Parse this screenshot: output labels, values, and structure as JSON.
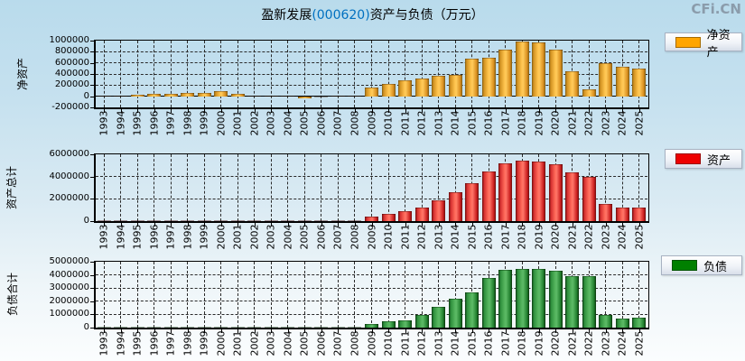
{
  "title": {
    "company": "盈新发展",
    "code": "(000620)",
    "suffix": "资产与负债（万元）"
  },
  "logo": "CFi.CN",
  "colors": {
    "background_top": "#b9dbec",
    "background_bottom": "#fbfdfe",
    "title_code": "#0070c0",
    "logo": "#8b9cab",
    "net_assets": "#FFA500",
    "assets": "#EE0000",
    "liabilities": "#008000",
    "gridline": "#2a2a2a"
  },
  "chart_data": [
    {
      "type": "bar",
      "ylabel": "净资产",
      "legend": "净资产",
      "series_key": "net-assets",
      "color": "#FFA500",
      "grid": true,
      "legend_position": "right",
      "ylim": [
        -200000,
        1000000
      ],
      "yticks": [
        1000000,
        800000,
        600000,
        400000,
        200000,
        0,
        -200000
      ],
      "categories": [
        "1993",
        "1994",
        "1995",
        "1996",
        "1997",
        "1998",
        "1999",
        "2000",
        "2001",
        "2002",
        "2003",
        "2004",
        "2005",
        "2006",
        "2007",
        "2008",
        "2009",
        "2010",
        "2011",
        "2012",
        "2013",
        "2014",
        "2015",
        "2016",
        "2017",
        "2018",
        "2019",
        "2020",
        "2021",
        "2022",
        "2023",
        "2024",
        "2025"
      ],
      "values": [
        15000,
        15000,
        35000,
        45000,
        45000,
        60000,
        65000,
        85000,
        40000,
        15000,
        15000,
        10000,
        -40000,
        -10000,
        10000,
        15000,
        160000,
        215000,
        290000,
        315000,
        365000,
        380000,
        670000,
        700000,
        840000,
        985000,
        975000,
        840000,
        445000,
        120000,
        600000,
        535000,
        500000
      ]
    },
    {
      "type": "bar",
      "ylabel": "资产总计",
      "legend": "资产",
      "series_key": "total-assets",
      "color": "#EE0000",
      "grid": true,
      "legend_position": "right",
      "ylim": [
        0,
        6000000
      ],
      "yticks": [
        6000000,
        4000000,
        2000000,
        0
      ],
      "categories": [
        "1993",
        "1994",
        "1995",
        "1996",
        "1997",
        "1998",
        "1999",
        "2000",
        "2001",
        "2002",
        "2003",
        "2004",
        "2005",
        "2006",
        "2007",
        "2008",
        "2009",
        "2010",
        "2011",
        "2012",
        "2013",
        "2014",
        "2015",
        "2016",
        "2017",
        "2018",
        "2019",
        "2020",
        "2021",
        "2022",
        "2023",
        "2024",
        "2025"
      ],
      "values": [
        30000,
        35000,
        60000,
        70000,
        75000,
        90000,
        95000,
        110000,
        90000,
        80000,
        75000,
        70000,
        60000,
        50000,
        60000,
        70000,
        400000,
        650000,
        860000,
        1200000,
        1900000,
        2560000,
        3380000,
        4490000,
        5200000,
        5410000,
        5350000,
        5120000,
        4350000,
        4000000,
        1550000,
        1240000,
        1220000
      ]
    },
    {
      "type": "bar",
      "ylabel": "负债合计",
      "legend": "负债",
      "series_key": "total-liabilities",
      "color": "#008000",
      "grid": true,
      "legend_position": "right",
      "ylim": [
        0,
        5000000
      ],
      "yticks": [
        5000000,
        4000000,
        3000000,
        2000000,
        1000000,
        0
      ],
      "categories": [
        "1993",
        "1994",
        "1995",
        "1996",
        "1997",
        "1998",
        "1999",
        "2000",
        "2001",
        "2002",
        "2003",
        "2004",
        "2005",
        "2006",
        "2007",
        "2008",
        "2009",
        "2010",
        "2011",
        "2012",
        "2013",
        "2014",
        "2015",
        "2016",
        "2017",
        "2018",
        "2019",
        "2020",
        "2021",
        "2022",
        "2023",
        "2024",
        "2025"
      ],
      "values": [
        15000,
        20000,
        25000,
        25000,
        30000,
        30000,
        30000,
        25000,
        50000,
        65000,
        60000,
        60000,
        100000,
        60000,
        50000,
        55000,
        250000,
        450000,
        570000,
        940000,
        1560000,
        2180000,
        2700000,
        3780000,
        4380000,
        4430000,
        4430000,
        4310000,
        3900000,
        3900000,
        990000,
        710000,
        760000
      ]
    }
  ]
}
